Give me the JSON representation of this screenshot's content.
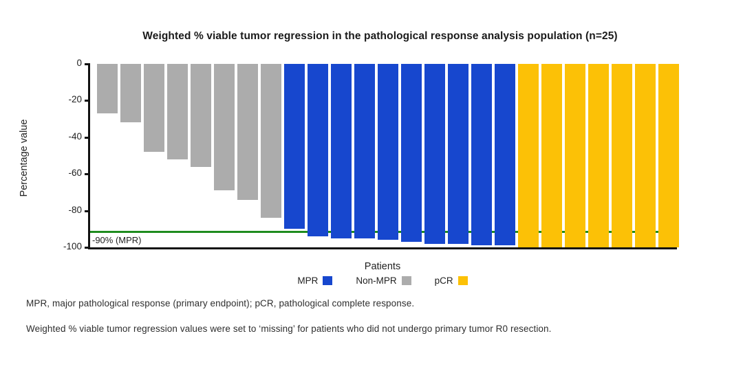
{
  "title": "Weighted % viable tumor regression in the pathological response analysis population (n=25)",
  "y_axis": {
    "label": "Percentage value",
    "ticks": [
      "0",
      "-20",
      "-40",
      "-60",
      "-80",
      "-100"
    ]
  },
  "x_axis": {
    "label": "Patients"
  },
  "reference_line": {
    "value": -90,
    "label": "-90% (MPR)",
    "color": "#1E8C1E"
  },
  "legend": [
    {
      "label": "MPR",
      "color": "#1747CE"
    },
    {
      "label": "Non-MPR",
      "color": "#ACACAC"
    },
    {
      "label": "pCR",
      "color": "#FCC106"
    }
  ],
  "footnotes": [
    "MPR, major pathological response (primary endpoint); pCR, pathological complete response.",
    "Weighted % viable tumor regression values were set to ‘missing’ for patients who did not undergo primary tumor R0 resection."
  ],
  "chart_data": {
    "type": "bar",
    "title": "Weighted % viable tumor regression in the pathological response analysis population (n=25)",
    "xlabel": "Patients",
    "ylabel": "Percentage value",
    "ylim": [
      -100,
      0
    ],
    "yticks": [
      0,
      -20,
      -40,
      -60,
      -80,
      -100
    ],
    "grid": false,
    "legend_position": "bottom",
    "reference_line": {
      "y": -90,
      "label": "-90% (MPR)",
      "color": "#1E8C1E"
    },
    "series": [
      {
        "name": "Non-MPR",
        "color": "#ACACAC",
        "values": [
          -27,
          -32,
          -48,
          -52,
          -56,
          -69,
          -74,
          -84
        ]
      },
      {
        "name": "MPR",
        "color": "#1747CE",
        "values": [
          -90,
          -94,
          -95,
          -95,
          -96,
          -97,
          -98,
          -98,
          -99,
          -99
        ]
      },
      {
        "name": "pCR",
        "color": "#FCC106",
        "values": [
          -100,
          -100,
          -100,
          -100,
          -100,
          -100,
          -100
        ]
      }
    ]
  }
}
